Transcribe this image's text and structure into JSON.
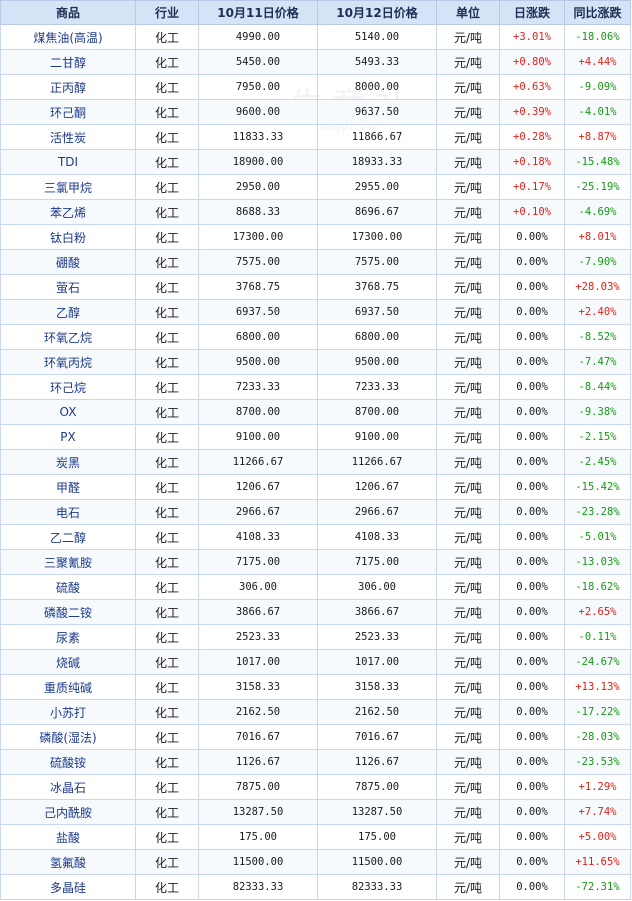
{
  "headers": [
    "商品",
    "行业",
    "10月11日价格",
    "10月12日价格",
    "单位",
    "日涨跌",
    "同比涨跌"
  ],
  "watermark": {
    "text": "生意社",
    "sub": "100ppi.com"
  },
  "colors": {
    "up": "#e0201a",
    "down": "#169a16",
    "header_bg": "#d4e3f5",
    "border": "#c9d8ee"
  },
  "rows": [
    {
      "name": "煤焦油(高温)",
      "industry": "化工",
      "p11": "4990.00",
      "p12": "5140.00",
      "unit": "元/吨",
      "day": "+3.01%",
      "yoy": "-18.06%"
    },
    {
      "name": "二甘醇",
      "industry": "化工",
      "p11": "5450.00",
      "p12": "5493.33",
      "unit": "元/吨",
      "day": "+0.80%",
      "yoy": "+4.44%"
    },
    {
      "name": "正丙醇",
      "industry": "化工",
      "p11": "7950.00",
      "p12": "8000.00",
      "unit": "元/吨",
      "day": "+0.63%",
      "yoy": "-9.09%"
    },
    {
      "name": "环己酮",
      "industry": "化工",
      "p11": "9600.00",
      "p12": "9637.50",
      "unit": "元/吨",
      "day": "+0.39%",
      "yoy": "-4.01%"
    },
    {
      "name": "活性炭",
      "industry": "化工",
      "p11": "11833.33",
      "p12": "11866.67",
      "unit": "元/吨",
      "day": "+0.28%",
      "yoy": "+8.87%"
    },
    {
      "name": "TDI",
      "industry": "化工",
      "p11": "18900.00",
      "p12": "18933.33",
      "unit": "元/吨",
      "day": "+0.18%",
      "yoy": "-15.48%"
    },
    {
      "name": "三氯甲烷",
      "industry": "化工",
      "p11": "2950.00",
      "p12": "2955.00",
      "unit": "元/吨",
      "day": "+0.17%",
      "yoy": "-25.19%"
    },
    {
      "name": "苯乙烯",
      "industry": "化工",
      "p11": "8688.33",
      "p12": "8696.67",
      "unit": "元/吨",
      "day": "+0.10%",
      "yoy": "-4.69%"
    },
    {
      "name": "钛白粉",
      "industry": "化工",
      "p11": "17300.00",
      "p12": "17300.00",
      "unit": "元/吨",
      "day": "0.00%",
      "yoy": "+8.01%"
    },
    {
      "name": "硼酸",
      "industry": "化工",
      "p11": "7575.00",
      "p12": "7575.00",
      "unit": "元/吨",
      "day": "0.00%",
      "yoy": "-7.90%"
    },
    {
      "name": "萤石",
      "industry": "化工",
      "p11": "3768.75",
      "p12": "3768.75",
      "unit": "元/吨",
      "day": "0.00%",
      "yoy": "+28.03%"
    },
    {
      "name": "乙醇",
      "industry": "化工",
      "p11": "6937.50",
      "p12": "6937.50",
      "unit": "元/吨",
      "day": "0.00%",
      "yoy": "+2.40%"
    },
    {
      "name": "环氧乙烷",
      "industry": "化工",
      "p11": "6800.00",
      "p12": "6800.00",
      "unit": "元/吨",
      "day": "0.00%",
      "yoy": "-8.52%"
    },
    {
      "name": "环氧丙烷",
      "industry": "化工",
      "p11": "9500.00",
      "p12": "9500.00",
      "unit": "元/吨",
      "day": "0.00%",
      "yoy": "-7.47%"
    },
    {
      "name": "环己烷",
      "industry": "化工",
      "p11": "7233.33",
      "p12": "7233.33",
      "unit": "元/吨",
      "day": "0.00%",
      "yoy": "-8.44%"
    },
    {
      "name": "OX",
      "industry": "化工",
      "p11": "8700.00",
      "p12": "8700.00",
      "unit": "元/吨",
      "day": "0.00%",
      "yoy": "-9.38%"
    },
    {
      "name": "PX",
      "industry": "化工",
      "p11": "9100.00",
      "p12": "9100.00",
      "unit": "元/吨",
      "day": "0.00%",
      "yoy": "-2.15%"
    },
    {
      "name": "炭黑",
      "industry": "化工",
      "p11": "11266.67",
      "p12": "11266.67",
      "unit": "元/吨",
      "day": "0.00%",
      "yoy": "-2.45%"
    },
    {
      "name": "甲醛",
      "industry": "化工",
      "p11": "1206.67",
      "p12": "1206.67",
      "unit": "元/吨",
      "day": "0.00%",
      "yoy": "-15.42%"
    },
    {
      "name": "电石",
      "industry": "化工",
      "p11": "2966.67",
      "p12": "2966.67",
      "unit": "元/吨",
      "day": "0.00%",
      "yoy": "-23.28%"
    },
    {
      "name": "乙二醇",
      "industry": "化工",
      "p11": "4108.33",
      "p12": "4108.33",
      "unit": "元/吨",
      "day": "0.00%",
      "yoy": "-5.01%"
    },
    {
      "name": "三聚氰胺",
      "industry": "化工",
      "p11": "7175.00",
      "p12": "7175.00",
      "unit": "元/吨",
      "day": "0.00%",
      "yoy": "-13.03%"
    },
    {
      "name": "硫酸",
      "industry": "化工",
      "p11": "306.00",
      "p12": "306.00",
      "unit": "元/吨",
      "day": "0.00%",
      "yoy": "-18.62%"
    },
    {
      "name": "磷酸二铵",
      "industry": "化工",
      "p11": "3866.67",
      "p12": "3866.67",
      "unit": "元/吨",
      "day": "0.00%",
      "yoy": "+2.65%"
    },
    {
      "name": "尿素",
      "industry": "化工",
      "p11": "2523.33",
      "p12": "2523.33",
      "unit": "元/吨",
      "day": "0.00%",
      "yoy": "-0.11%"
    },
    {
      "name": "烧碱",
      "industry": "化工",
      "p11": "1017.00",
      "p12": "1017.00",
      "unit": "元/吨",
      "day": "0.00%",
      "yoy": "-24.67%"
    },
    {
      "name": "重质纯碱",
      "industry": "化工",
      "p11": "3158.33",
      "p12": "3158.33",
      "unit": "元/吨",
      "day": "0.00%",
      "yoy": "+13.13%"
    },
    {
      "name": "小苏打",
      "industry": "化工",
      "p11": "2162.50",
      "p12": "2162.50",
      "unit": "元/吨",
      "day": "0.00%",
      "yoy": "-17.22%"
    },
    {
      "name": "磷酸(湿法)",
      "industry": "化工",
      "p11": "7016.67",
      "p12": "7016.67",
      "unit": "元/吨",
      "day": "0.00%",
      "yoy": "-28.03%"
    },
    {
      "name": "硫酸铵",
      "industry": "化工",
      "p11": "1126.67",
      "p12": "1126.67",
      "unit": "元/吨",
      "day": "0.00%",
      "yoy": "-23.53%"
    },
    {
      "name": "冰晶石",
      "industry": "化工",
      "p11": "7875.00",
      "p12": "7875.00",
      "unit": "元/吨",
      "day": "0.00%",
      "yoy": "+1.29%"
    },
    {
      "name": "己内酰胺",
      "industry": "化工",
      "p11": "13287.50",
      "p12": "13287.50",
      "unit": "元/吨",
      "day": "0.00%",
      "yoy": "+7.74%"
    },
    {
      "name": "盐酸",
      "industry": "化工",
      "p11": "175.00",
      "p12": "175.00",
      "unit": "元/吨",
      "day": "0.00%",
      "yoy": "+5.00%"
    },
    {
      "name": "氢氟酸",
      "industry": "化工",
      "p11": "11500.00",
      "p12": "11500.00",
      "unit": "元/吨",
      "day": "0.00%",
      "yoy": "+11.65%"
    },
    {
      "name": "多晶硅",
      "industry": "化工",
      "p11": "82333.33",
      "p12": "82333.33",
      "unit": "元/吨",
      "day": "0.00%",
      "yoy": "-72.31%"
    }
  ]
}
